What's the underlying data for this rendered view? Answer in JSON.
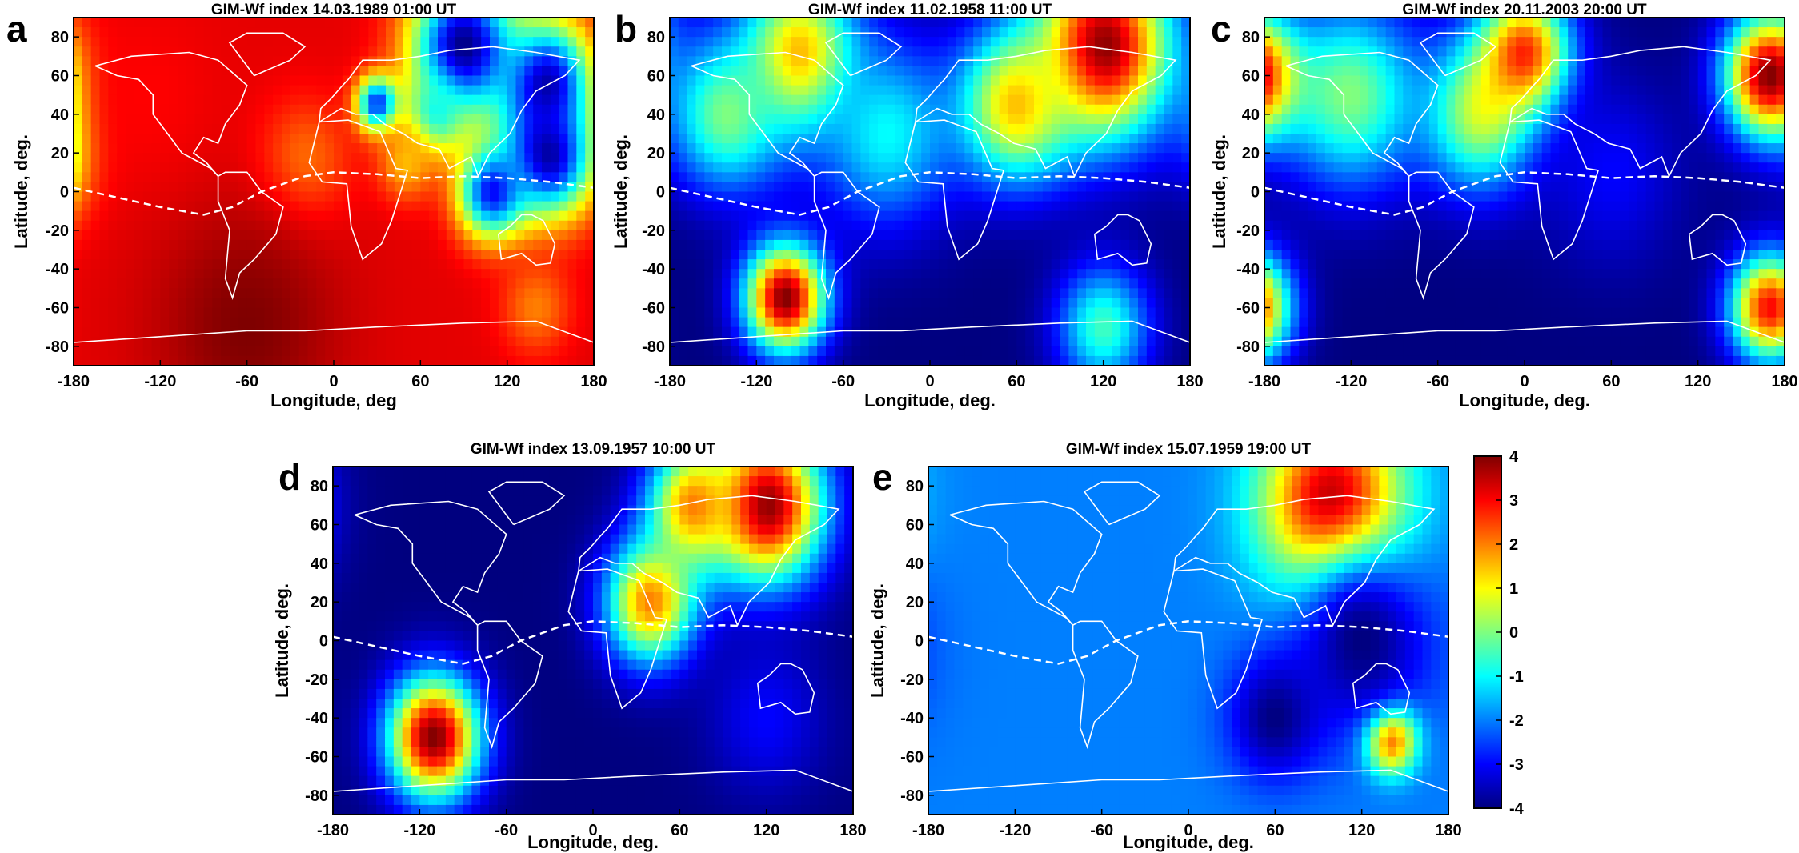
{
  "colors": {
    "colormap": [
      "#00007f",
      "#0000ff",
      "#007fff",
      "#00ffff",
      "#7fff7f",
      "#ffff00",
      "#ff7f00",
      "#ff0000",
      "#7f0000"
    ],
    "coastline": "#ffffff",
    "geomagnetic_equator": "#ffffff"
  },
  "colorbar": {
    "ticks": [
      "4",
      "3",
      "2",
      "1",
      "0",
      "-1",
      "-2",
      "-3",
      "-4"
    ],
    "range": [
      -4,
      4
    ]
  },
  "chart_data": [
    {
      "type": "heatmap",
      "letter": "a",
      "title": "GIM-Wf  index 14.03.1989 01:00 UT",
      "xlabel": "Longitude, deg",
      "ylabel": "Latitude, deg.",
      "xticks": [
        "-180",
        "-120",
        "-60",
        "0",
        "60",
        "120",
        "180"
      ],
      "yticks": [
        "80",
        "60",
        "40",
        "20",
        "0",
        "-20",
        "-40",
        "-60",
        "-80"
      ],
      "xlim": [
        -180,
        180
      ],
      "ylim": [
        -90,
        90
      ],
      "colorbar_range": [
        -4,
        4
      ],
      "grid": false,
      "background_value": 3.2,
      "features": [
        {
          "lon": 90,
          "lat": 75,
          "width": 45,
          "value": -4
        },
        {
          "lon": 150,
          "lat": 55,
          "width": 40,
          "value": -4
        },
        {
          "lon": 150,
          "lat": 20,
          "width": 40,
          "value": -4
        },
        {
          "lon": 110,
          "lat": 0,
          "width": 30,
          "value": -3
        },
        {
          "lon": 70,
          "lat": 40,
          "width": 25,
          "value": -1
        },
        {
          "lon": 30,
          "lat": 45,
          "width": 18,
          "value": -3
        },
        {
          "lon": 50,
          "lat": 15,
          "width": 25,
          "value": 1.5
        },
        {
          "lon": -20,
          "lat": 15,
          "width": 40,
          "value": 2
        },
        {
          "lon": -60,
          "lat": -70,
          "width": 80,
          "value": 4
        },
        {
          "lon": 140,
          "lat": -60,
          "width": 30,
          "value": 2
        },
        {
          "lon": -130,
          "lat": 50,
          "width": 60,
          "value": 3
        }
      ]
    },
    {
      "type": "heatmap",
      "letter": "b",
      "title": "GIM-Wf  index 11.02.1958 11:00 UT",
      "xlabel": "Longitude, deg.",
      "ylabel": "Latitude, deg.",
      "xticks": [
        "-180",
        "-120",
        "-60",
        "0",
        "60",
        "120",
        "180"
      ],
      "yticks": [
        "80",
        "60",
        "40",
        "20",
        "0",
        "-20",
        "-40",
        "-60",
        "-80"
      ],
      "xlim": [
        -180,
        180
      ],
      "ylim": [
        -90,
        90
      ],
      "colorbar_range": [
        -4,
        4
      ],
      "grid": false,
      "background_value": -4,
      "features": [
        {
          "lon": 120,
          "lat": 75,
          "width": 60,
          "value": 4
        },
        {
          "lon": -90,
          "lat": 70,
          "width": 50,
          "value": 2
        },
        {
          "lon": -140,
          "lat": 40,
          "width": 50,
          "value": 0
        },
        {
          "lon": -30,
          "lat": 30,
          "width": 60,
          "value": -1
        },
        {
          "lon": 60,
          "lat": 45,
          "width": 50,
          "value": 1.5
        },
        {
          "lon": -100,
          "lat": -55,
          "width": 35,
          "value": 4
        },
        {
          "lon": 120,
          "lat": -70,
          "width": 40,
          "value": -0.5
        }
      ]
    },
    {
      "type": "heatmap",
      "letter": "c",
      "title": "GIM-Wf  index 20.11.2003 20:00 UT",
      "xlabel": "Longitude, deg.",
      "ylabel": "Latitude, deg.",
      "xticks": [
        "-180",
        "-120",
        "-60",
        "0",
        "60",
        "120",
        "180"
      ],
      "yticks": [
        "80",
        "60",
        "40",
        "20",
        "0",
        "-20",
        "-40",
        "-60",
        "-80"
      ],
      "xlim": [
        -180,
        180
      ],
      "ylim": [
        -90,
        90
      ],
      "colorbar_range": [
        -4,
        4
      ],
      "grid": false,
      "background_value": -4,
      "features": [
        {
          "lon": -120,
          "lat": 50,
          "width": 60,
          "value": 0
        },
        {
          "lon": -30,
          "lat": 40,
          "width": 50,
          "value": 0.5
        },
        {
          "lon": 0,
          "lat": 70,
          "width": 40,
          "value": 3
        },
        {
          "lon": 170,
          "lat": 60,
          "width": 40,
          "value": 4
        },
        {
          "lon": 170,
          "lat": -60,
          "width": 35,
          "value": 3
        },
        {
          "lon": 60,
          "lat": 10,
          "width": 60,
          "value": -3
        }
      ]
    },
    {
      "type": "heatmap",
      "letter": "d",
      "title": "GIM-Wf  index 13.09.1957 10:00 UT",
      "xlabel": "Longitude, deg.",
      "ylabel": "Latitude, deg.",
      "xticks": [
        "-180",
        "-120",
        "-60",
        "0",
        "60",
        "120",
        "180"
      ],
      "yticks": [
        "80",
        "60",
        "40",
        "20",
        "0",
        "-20",
        "-40",
        "-60",
        "-80"
      ],
      "xlim": [
        -180,
        180
      ],
      "ylim": [
        -90,
        90
      ],
      "colorbar_range": [
        -4,
        4
      ],
      "grid": false,
      "background_value": -4,
      "features": [
        {
          "lon": 120,
          "lat": 70,
          "width": 50,
          "value": 4
        },
        {
          "lon": 40,
          "lat": 20,
          "width": 40,
          "value": 2
        },
        {
          "lon": 70,
          "lat": 70,
          "width": 40,
          "value": 2
        },
        {
          "lon": -110,
          "lat": -50,
          "width": 40,
          "value": 4
        },
        {
          "lon": 120,
          "lat": -40,
          "width": 50,
          "value": -3
        }
      ]
    },
    {
      "type": "heatmap",
      "letter": "e",
      "title": "GIM-Wf  index 15.07.1959 19:00 UT",
      "xlabel": "Longitude, deg.",
      "ylabel": "Latitude, deg.",
      "xticks": [
        "-180",
        "-120",
        "-60",
        "0",
        "60",
        "120",
        "180"
      ],
      "yticks": [
        "80",
        "60",
        "40",
        "20",
        "0",
        "-20",
        "-40",
        "-60",
        "-80"
      ],
      "xlim": [
        -180,
        180
      ],
      "ylim": [
        -90,
        90
      ],
      "colorbar_range": [
        -4,
        4
      ],
      "grid": false,
      "background_value": -2,
      "features": [
        {
          "lon": 100,
          "lat": 70,
          "width": 60,
          "value": 4
        },
        {
          "lon": 140,
          "lat": -50,
          "width": 22,
          "value": 4
        },
        {
          "lon": 120,
          "lat": 0,
          "width": 60,
          "value": -4
        },
        {
          "lon": 60,
          "lat": -40,
          "width": 40,
          "value": -4
        }
      ]
    }
  ]
}
